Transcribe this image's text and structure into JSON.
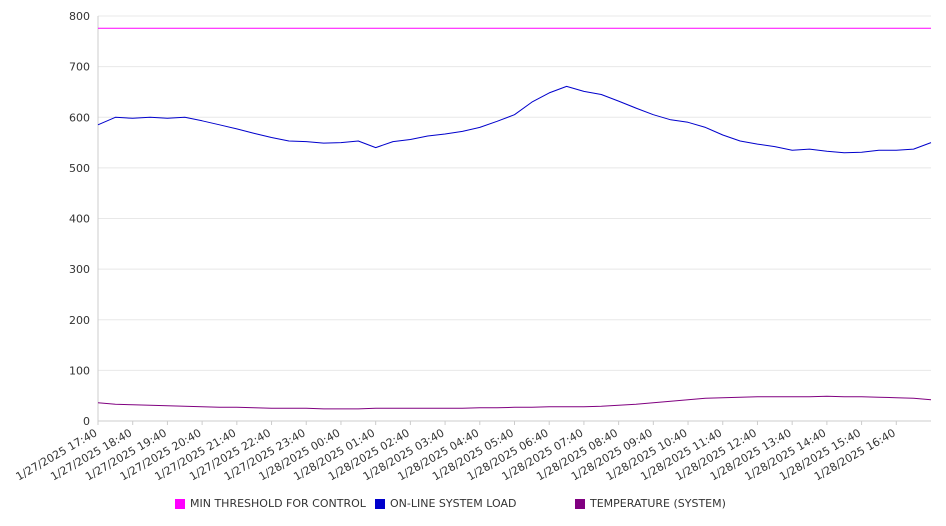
{
  "chart_data": {
    "type": "line",
    "ylim": [
      0,
      800
    ],
    "y_ticks": [
      "0",
      "100",
      "200",
      "300",
      "400",
      "500",
      "600",
      "700",
      "800"
    ],
    "x_tick_labels": [
      "1/27/2025 17:40",
      "1/27/2025 18:40",
      "1/27/2025 19:40",
      "1/27/2025 20:40",
      "1/27/2025 21:40",
      "1/27/2025 22:40",
      "1/27/2025 23:40",
      "1/28/2025 00:40",
      "1/28/2025 01:40",
      "1/28/2025 02:40",
      "1/28/2025 03:40",
      "1/28/2025 04:40",
      "1/28/2025 05:40",
      "1/28/2025 06:40",
      "1/28/2025 07:40",
      "1/28/2025 08:40",
      "1/28/2025 09:40",
      "1/28/2025 10:40",
      "1/28/2025 11:40",
      "1/28/2025 12:40",
      "1/28/2025 13:40",
      "1/28/2025 14:40",
      "1/28/2025 15:40",
      "1/28/2025 16:40"
    ],
    "x_hours": [
      0,
      0.5,
      1,
      1.5,
      2,
      2.5,
      3,
      3.5,
      4,
      4.5,
      5,
      5.5,
      6,
      6.5,
      7,
      7.5,
      8,
      8.5,
      9,
      9.5,
      10,
      10.5,
      11,
      11.5,
      12,
      12.5,
      13,
      13.5,
      14,
      14.5,
      15,
      15.5,
      16,
      16.5,
      17,
      17.5,
      18,
      18.5,
      19,
      19.5,
      20,
      20.5,
      21,
      21.5,
      22,
      22.5,
      23,
      23.5,
      24
    ],
    "x_range_hours": [
      0,
      24
    ],
    "grid": true,
    "legend_position": "bottom",
    "series": [
      {
        "name": "MIN THRESHOLD FOR CONTROL",
        "color": "#ff00ff",
        "values": [
          776,
          776,
          776,
          776,
          776,
          776,
          776,
          776,
          776,
          776,
          776,
          776,
          776,
          776,
          776,
          776,
          776,
          776,
          776,
          776,
          776,
          776,
          776,
          776,
          776,
          776,
          776,
          776,
          776,
          776,
          776,
          776,
          776,
          776,
          776,
          776,
          776,
          776,
          776,
          776,
          776,
          776,
          776,
          776,
          776,
          776,
          776,
          776,
          776
        ]
      },
      {
        "name": "ON-LINE SYSTEM LOAD",
        "color": "#0000cc",
        "values": [
          585,
          600,
          598,
          600,
          598,
          600,
          593,
          585,
          577,
          568,
          560,
          553,
          552,
          549,
          550,
          553,
          540,
          552,
          556,
          563,
          567,
          572,
          580,
          592,
          605,
          630,
          648,
          661,
          651,
          645,
          632,
          618,
          605,
          595,
          590,
          580,
          565,
          553,
          547,
          542,
          535,
          537,
          533,
          530,
          531,
          535,
          535,
          537,
          550
        ]
      },
      {
        "name": "TEMPERATURE (SYSTEM)",
        "color": "#800080",
        "values": [
          36,
          33,
          32,
          31,
          30,
          29,
          28,
          27,
          27,
          26,
          25,
          25,
          25,
          24,
          24,
          24,
          25,
          25,
          25,
          25,
          25,
          25,
          26,
          26,
          27,
          27,
          28,
          28,
          28,
          29,
          31,
          33,
          36,
          39,
          42,
          45,
          46,
          47,
          48,
          48,
          48,
          48,
          49,
          48,
          48,
          47,
          46,
          45,
          42
        ]
      }
    ]
  }
}
